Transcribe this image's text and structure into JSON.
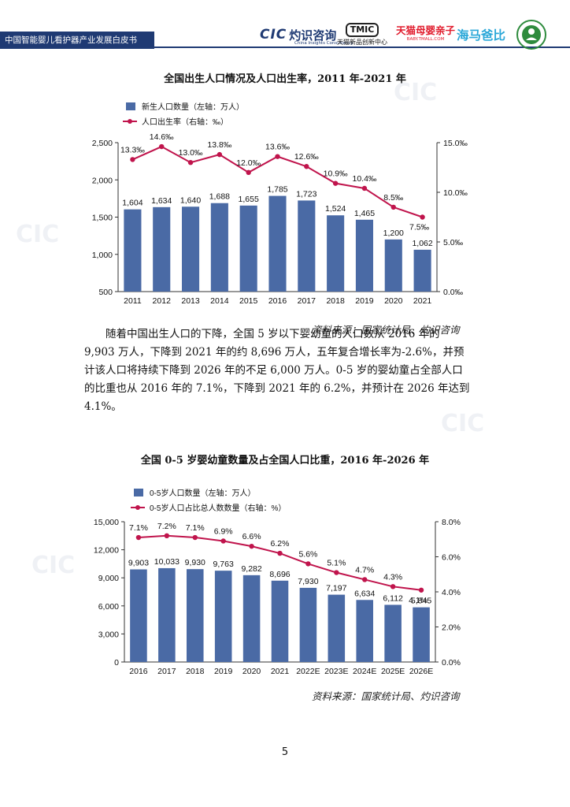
{
  "header": {
    "band_text": "中国智能婴儿看护器产业发展白皮书"
  },
  "logos": {
    "cic_mark": "CIC",
    "cic_cn": "灼识咨询",
    "cic_sub": "China Insights Consultancy",
    "tmic_mark": "TMIC",
    "tmic_sub": "天猫新品创新中心",
    "tmall_cn": "天猫母婴亲子",
    "tmall_sub": "BABY.TMALL.COM",
    "hmbb": "海马爸比"
  },
  "chart1": {
    "title": "全国出生人口情况及人口出生率，2011 年-2021 年",
    "source": "资料来源：国家统计局、灼识咨询"
  },
  "body": {
    "lines": [
      "随着中国出生人口的下降，全国 5 岁以下婴幼童的人口数从 2016 年的",
      "9,903 万人，下降到 2021 年的约 8,696 万人，五年复合增长率为-2.6%，并预",
      "计该人口将持续下降到 2026 年的不足 6,000 万人。0-5 岁的婴幼童占全部人口",
      "的比重也从 2016 年的 7.1%，下降到 2021 年的 6.2%，并预计在 2026 年达到",
      "4.1%。"
    ]
  },
  "chart2": {
    "title": "全国 0-5 岁婴幼童数量及占全国人口比重，2016 年-2026 年",
    "source": "资料来源：国家统计局、灼识咨询"
  },
  "page_number": "5",
  "colors": {
    "bar": "#4a6aa5",
    "line": "#c0144c",
    "navy": "#1f3a73"
  },
  "chart_data": [
    {
      "type": "bar",
      "title": "全国出生人口情况及人口出生率，2011 年-2021 年",
      "categories": [
        "2011",
        "2012",
        "2013",
        "2014",
        "2015",
        "2016",
        "2017",
        "2018",
        "2019",
        "2020",
        "2021"
      ],
      "series": [
        {
          "name": "新生人口数量（左轴：万人）",
          "type": "bar",
          "axis": "left",
          "values": [
            1604,
            1634,
            1640,
            1688,
            1655,
            1785,
            1723,
            1524,
            1465,
            1200,
            1062
          ],
          "labels": [
            "1,604",
            "1,634",
            "1,640",
            "1,688",
            "1,655",
            "1,785",
            "1,723",
            "1,524",
            "1,465",
            "1,200",
            "1,062"
          ]
        },
        {
          "name": "人口出生率（右轴：‰）",
          "type": "line",
          "axis": "right",
          "values": [
            13.3,
            14.6,
            13.0,
            13.8,
            12.0,
            13.6,
            12.6,
            10.9,
            10.4,
            8.5,
            7.5
          ],
          "labels": [
            "13.3‰",
            "14.6‰",
            "13.0‰",
            "13.8‰",
            "12.0‰",
            "13.6‰",
            "12.6‰",
            "10.9‰",
            "10.4‰",
            "8.5‰",
            "7.5‰"
          ]
        }
      ],
      "y_left": {
        "min": 500,
        "max": 2500,
        "ticks": [
          "500",
          "1,000",
          "1,500",
          "2,000",
          "2,500"
        ]
      },
      "y_right": {
        "min": 0,
        "max": 15,
        "ticks": [
          "0.0‰",
          "5.0‰",
          "10.0‰",
          "15.0‰"
        ]
      },
      "legend": "top-left"
    },
    {
      "type": "bar",
      "title": "全国 0-5 岁婴幼童数量及占全国人口比重，2016 年-2026 年",
      "categories": [
        "2016",
        "2017",
        "2018",
        "2019",
        "2020",
        "2021",
        "2022E",
        "2023E",
        "2024E",
        "2025E",
        "2026E"
      ],
      "series": [
        {
          "name": "0-5岁人口数量（左轴：万人）",
          "type": "bar",
          "axis": "left",
          "values": [
            9903,
            10033,
            9930,
            9763,
            9282,
            8696,
            7930,
            7197,
            6634,
            6112,
            5845
          ],
          "labels": [
            "9,903",
            "10,033",
            "9,930",
            "9,763",
            "9,282",
            "8,696",
            "7,930",
            "7,197",
            "6,634",
            "6,112",
            "5,845"
          ]
        },
        {
          "name": "0-5岁人口占比总人数数量（右轴：%）",
          "type": "line",
          "axis": "right",
          "values": [
            7.1,
            7.2,
            7.1,
            6.9,
            6.6,
            6.2,
            5.6,
            5.1,
            4.7,
            4.3,
            4.1
          ],
          "labels": [
            "7.1%",
            "7.2%",
            "7.1%",
            "6.9%",
            "6.6%",
            "6.2%",
            "5.6%",
            "5.1%",
            "4.7%",
            "4.3%",
            "4.1%"
          ]
        }
      ],
      "y_left": {
        "min": 0,
        "max": 15000,
        "ticks": [
          "0",
          "3,000",
          "6,000",
          "9,000",
          "12,000",
          "15,000"
        ]
      },
      "y_right": {
        "min": 0,
        "max": 8,
        "ticks": [
          "0.0%",
          "2.0%",
          "4.0%",
          "6.0%",
          "8.0%"
        ]
      },
      "legend": "top-left"
    }
  ]
}
